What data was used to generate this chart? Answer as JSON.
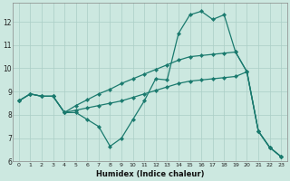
{
  "xlabel": "Humidex (Indice chaleur)",
  "background_color": "#cce8e0",
  "grid_color": "#aacec6",
  "line_color": "#1a7a6e",
  "xlim": [
    -0.5,
    23.5
  ],
  "ylim": [
    6,
    12.8
  ],
  "yticks": [
    6,
    7,
    8,
    9,
    10,
    11,
    12
  ],
  "xticks": [
    0,
    1,
    2,
    3,
    4,
    5,
    6,
    7,
    8,
    9,
    10,
    11,
    12,
    13,
    14,
    15,
    16,
    17,
    18,
    19,
    20,
    21,
    22,
    23
  ],
  "series": {
    "line1_x": [
      0,
      1,
      2,
      3,
      4,
      5,
      6,
      7,
      8,
      9,
      10,
      11,
      12,
      13,
      14,
      15,
      16,
      17,
      18,
      19,
      20,
      21,
      22,
      23
    ],
    "line1_y": [
      8.6,
      8.9,
      8.8,
      8.8,
      8.1,
      8.1,
      7.8,
      7.5,
      6.65,
      7.0,
      7.8,
      8.6,
      9.55,
      9.5,
      11.5,
      12.3,
      12.45,
      12.1,
      12.3,
      10.7,
      9.85,
      7.3,
      6.6,
      6.2
    ],
    "line2_x": [
      0,
      1,
      2,
      3,
      4,
      5,
      6,
      7,
      8,
      9,
      10,
      11,
      12,
      13,
      14,
      15,
      16,
      17,
      18,
      19,
      20,
      21,
      22,
      23
    ],
    "line2_y": [
      8.6,
      8.9,
      8.8,
      8.8,
      8.1,
      8.4,
      8.65,
      8.9,
      9.1,
      9.35,
      9.55,
      9.75,
      9.95,
      10.15,
      10.35,
      10.5,
      10.55,
      10.6,
      10.65,
      10.7,
      9.85,
      7.3,
      6.6,
      6.2
    ],
    "line3_x": [
      0,
      1,
      2,
      3,
      4,
      5,
      6,
      7,
      8,
      9,
      10,
      11,
      12,
      13,
      14,
      15,
      16,
      17,
      18,
      19,
      20,
      21,
      22,
      23
    ],
    "line3_y": [
      8.6,
      8.9,
      8.8,
      8.8,
      8.1,
      8.2,
      8.3,
      8.4,
      8.5,
      8.6,
      8.75,
      8.9,
      9.05,
      9.2,
      9.35,
      9.45,
      9.5,
      9.55,
      9.6,
      9.65,
      9.85,
      7.3,
      6.6,
      6.2
    ]
  }
}
